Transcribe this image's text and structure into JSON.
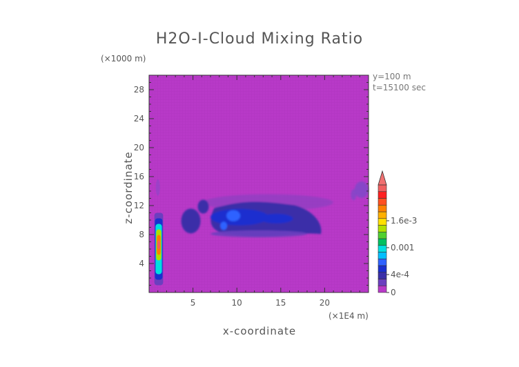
{
  "chart_data": {
    "type": "heatmap",
    "title": "H2O-I-Cloud Mixing Ratio",
    "xlabel": "x-coordinate",
    "ylabel": "z-coordinate",
    "x_unit": "(×1E4 m)",
    "z_unit": "(×1000 m)",
    "info": [
      "y=100 m",
      "t=15100 sec"
    ],
    "xlim": [
      0,
      25
    ],
    "ylim": [
      0,
      30
    ],
    "x_ticks": [
      5,
      10,
      15,
      20
    ],
    "y_ticks": [
      4,
      8,
      12,
      16,
      20,
      24,
      28
    ],
    "background_value": 0,
    "colorbar": {
      "labels": [
        {
          "value": 0,
          "text": "0"
        },
        {
          "value": 0.0004,
          "text": "4e-4"
        },
        {
          "value": 0.001,
          "text": "0.001"
        },
        {
          "value": 0.0016,
          "text": "1.6e-3"
        }
      ],
      "colors": [
        "#b839c8",
        "#6b3fbf",
        "#3a2fa8",
        "#1a2fcf",
        "#2f62ff",
        "#00bfff",
        "#00e0e0",
        "#00c060",
        "#50d030",
        "#b0e000",
        "#ffe000",
        "#ffb000",
        "#ff8000",
        "#ff5020",
        "#ff2020",
        "#f06060"
      ],
      "max": 0.0024,
      "extend": "max"
    },
    "features": [
      {
        "x_range": [
          0.6,
          1.6
        ],
        "z_range": [
          1.0,
          11.0
        ],
        "value_max": 0.0024,
        "note": "convective column at left"
      },
      {
        "x_range": [
          3.5,
          20.5
        ],
        "z_range": [
          7.5,
          13.0
        ],
        "value_max": 0.0007,
        "note": "anvil cloud layer"
      },
      {
        "x_range": [
          7.5,
          10.0
        ],
        "z_range": [
          8.5,
          11.5
        ],
        "value_max": 0.0007,
        "note": "core of anvil"
      },
      {
        "x_range": [
          22.5,
          25.0
        ],
        "z_range": [
          12.5,
          15.5
        ],
        "value_max": 0.0001,
        "note": "thin cloud at right"
      }
    ],
    "colors": {
      "background": "#b839c8",
      "text": "#555555",
      "frame": "#333333"
    }
  }
}
